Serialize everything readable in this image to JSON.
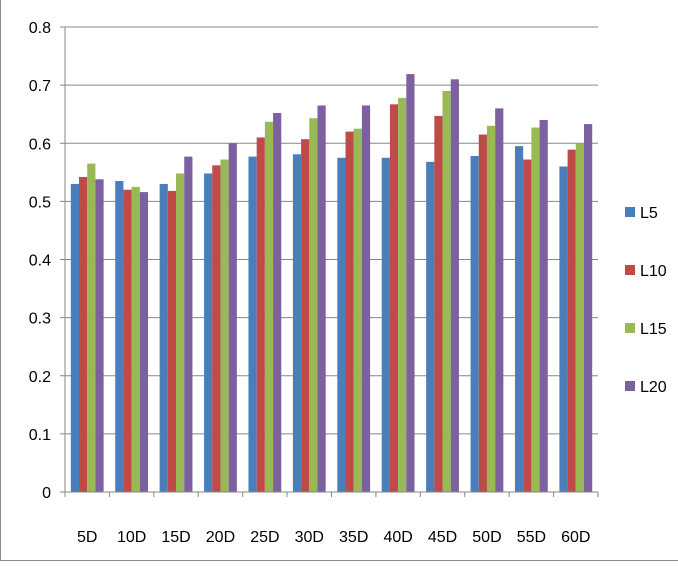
{
  "chart_data": {
    "type": "bar",
    "categories": [
      "5D",
      "10D",
      "15D",
      "20D",
      "25D",
      "30D",
      "35D",
      "40D",
      "45D",
      "50D",
      "55D",
      "60D"
    ],
    "series": [
      {
        "name": "L5",
        "color": "#4a7ebb",
        "values": [
          0.53,
          0.535,
          0.53,
          0.548,
          0.577,
          0.581,
          0.575,
          0.575,
          0.568,
          0.578,
          0.595,
          0.56
        ]
      },
      {
        "name": "L10",
        "color": "#be4b48",
        "values": [
          0.542,
          0.52,
          0.518,
          0.562,
          0.61,
          0.607,
          0.62,
          0.667,
          0.647,
          0.615,
          0.572,
          0.589
        ]
      },
      {
        "name": "L15",
        "color": "#98b954",
        "values": [
          0.565,
          0.525,
          0.548,
          0.572,
          0.637,
          0.643,
          0.625,
          0.678,
          0.69,
          0.63,
          0.627,
          0.6
        ]
      },
      {
        "name": "L20",
        "color": "#7d60a0",
        "values": [
          0.538,
          0.516,
          0.577,
          0.6,
          0.652,
          0.665,
          0.665,
          0.719,
          0.71,
          0.66,
          0.64,
          0.633
        ]
      }
    ],
    "ylim": [
      0,
      0.8
    ],
    "y_ticks": [
      "0",
      "0.1",
      "0.2",
      "0.3",
      "0.4",
      "0.5",
      "0.6",
      "0.7",
      "0.8"
    ],
    "grid": true,
    "legend_position": "right",
    "title": "",
    "xlabel": "",
    "ylabel": ""
  }
}
